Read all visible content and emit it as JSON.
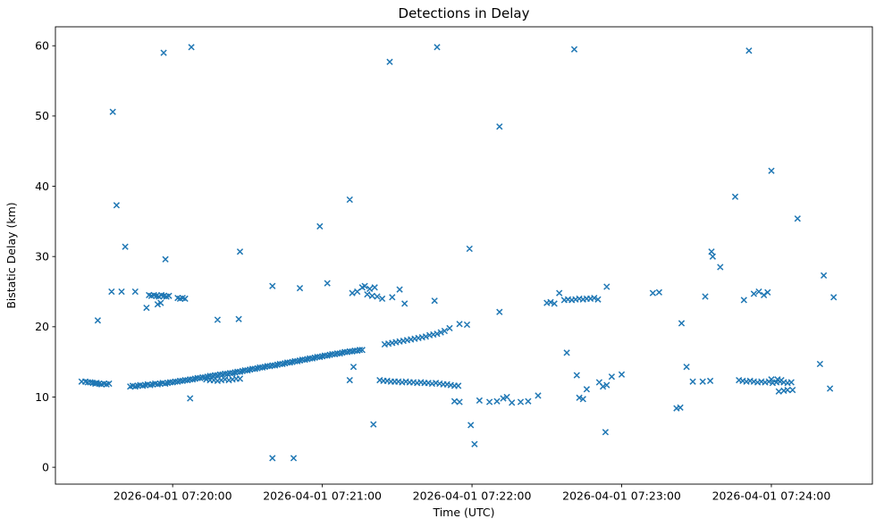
{
  "figure": {
    "background": "#ffffff"
  },
  "chart_data": {
    "type": "scatter",
    "title": "Detections in Delay",
    "xlabel": "Time (UTC)",
    "ylabel": "Bistatic Delay (km)",
    "marker": "x",
    "marker_color": "#1f77b4",
    "grid": false,
    "legend": "none",
    "x_axis": {
      "units": "seconds relative to 2026-04-01 07:20:00 UTC",
      "tick_seconds": [
        0,
        60,
        120,
        180,
        240
      ],
      "tick_labels": [
        "2026-04-01 07:20:00",
        "2026-04-01 07:21:00",
        "2026-04-01 07:22:00",
        "2026-04-01 07:23:00",
        "2026-04-01 07:24:00"
      ],
      "lim_seconds": [
        -47,
        280.5
      ]
    },
    "y_axis": {
      "ticks": [
        0,
        10,
        20,
        30,
        40,
        50,
        60
      ],
      "lim": [
        -2.4,
        62.7
      ]
    },
    "points": [
      [
        -36.5,
        12.2
      ],
      [
        -35,
        12.2
      ],
      [
        -34,
        12.1
      ],
      [
        -33,
        12.1
      ],
      [
        -32,
        12.0
      ],
      [
        -31,
        11.9
      ],
      [
        -30.5,
        12.0
      ],
      [
        -29.5,
        11.9
      ],
      [
        -28.5,
        11.8
      ],
      [
        -27.5,
        11.9
      ],
      [
        -26.5,
        11.8
      ],
      [
        -25.5,
        11.9
      ],
      [
        -30,
        20.9
      ],
      [
        -24.5,
        25.0
      ],
      [
        -24,
        50.6
      ],
      [
        -22.5,
        37.3
      ],
      [
        -20.5,
        25.0
      ],
      [
        -19,
        31.4
      ],
      [
        -15,
        25.0
      ],
      [
        -10.5,
        22.7
      ],
      [
        -9.5,
        24.5
      ],
      [
        -8.5,
        24.4
      ],
      [
        -7.5,
        24.5
      ],
      [
        -6.5,
        24.4
      ],
      [
        -6,
        23.2
      ],
      [
        -5.5,
        24.3
      ],
      [
        -4.8,
        23.4
      ],
      [
        -4.5,
        24.5
      ],
      [
        -3.6,
        59.0
      ],
      [
        -3.5,
        24.4
      ],
      [
        -2.9,
        29.6
      ],
      [
        -2.5,
        24.3
      ],
      [
        -1.5,
        24.4
      ],
      [
        2,
        24.1
      ],
      [
        3,
        24.0
      ],
      [
        4,
        24.1
      ],
      [
        5,
        24.0
      ],
      [
        7,
        9.8
      ],
      [
        7.5,
        59.8
      ],
      [
        -17,
        11.5
      ],
      [
        -16,
        11.6
      ],
      [
        -15,
        11.5
      ],
      [
        -14,
        11.6
      ],
      [
        -13,
        11.7
      ],
      [
        -12,
        11.6
      ],
      [
        -11,
        11.7
      ],
      [
        -10,
        11.8
      ],
      [
        -9,
        11.7
      ],
      [
        -8,
        11.8
      ],
      [
        -7,
        11.9
      ],
      [
        -6,
        11.8
      ],
      [
        -5,
        11.9
      ],
      [
        -4,
        12.0
      ],
      [
        -3,
        11.9
      ],
      [
        -2,
        12.0
      ],
      [
        -1,
        12.1
      ],
      [
        0,
        12.1
      ],
      [
        1,
        12.2
      ],
      [
        2,
        12.2
      ],
      [
        3,
        12.3
      ],
      [
        4,
        12.3
      ],
      [
        5,
        12.4
      ],
      [
        6,
        12.4
      ],
      [
        7,
        12.5
      ],
      [
        8,
        12.5
      ],
      [
        9,
        12.6
      ],
      [
        10,
        12.7
      ],
      [
        11,
        12.7
      ],
      [
        12,
        12.8
      ],
      [
        13,
        12.8
      ],
      [
        14,
        12.9
      ],
      [
        15,
        13.0
      ],
      [
        16,
        13.0
      ],
      [
        17,
        13.1
      ],
      [
        18,
        13.1
      ],
      [
        19,
        13.2
      ],
      [
        20,
        13.2
      ],
      [
        21,
        13.3
      ],
      [
        22,
        13.3
      ],
      [
        23,
        13.4
      ],
      [
        24,
        13.4
      ],
      [
        25,
        13.5
      ],
      [
        26,
        13.6
      ],
      [
        27,
        13.6
      ],
      [
        28,
        13.7
      ],
      [
        29,
        13.8
      ],
      [
        30,
        13.8
      ],
      [
        31,
        13.9
      ],
      [
        32,
        14.0
      ],
      [
        33,
        14.0
      ],
      [
        34,
        14.1
      ],
      [
        35,
        14.2
      ],
      [
        36,
        14.2
      ],
      [
        37,
        14.3
      ],
      [
        38,
        14.4
      ],
      [
        39,
        14.4
      ],
      [
        40,
        14.5
      ],
      [
        41,
        14.5
      ],
      [
        42,
        14.6
      ],
      [
        43,
        14.7
      ],
      [
        44,
        14.7
      ],
      [
        45,
        14.8
      ],
      [
        46,
        14.9
      ],
      [
        47,
        14.9
      ],
      [
        48,
        15.0
      ],
      [
        49,
        15.1
      ],
      [
        50,
        15.1
      ],
      [
        51,
        15.2
      ],
      [
        52,
        15.3
      ],
      [
        53,
        15.3
      ],
      [
        54,
        15.4
      ],
      [
        55,
        15.5
      ],
      [
        56,
        15.5
      ],
      [
        57,
        15.6
      ],
      [
        58,
        15.7
      ],
      [
        59,
        15.7
      ],
      [
        60,
        15.8
      ],
      [
        61,
        15.9
      ],
      [
        62,
        15.9
      ],
      [
        63,
        16.0
      ],
      [
        64,
        16.1
      ],
      [
        65,
        16.1
      ],
      [
        66,
        16.2
      ],
      [
        67,
        16.2
      ],
      [
        68,
        16.3
      ],
      [
        69,
        16.4
      ],
      [
        70,
        16.4
      ],
      [
        71,
        16.5
      ],
      [
        72,
        16.5
      ],
      [
        73,
        16.6
      ],
      [
        74,
        16.6
      ],
      [
        75,
        16.7
      ],
      [
        76,
        16.7
      ],
      [
        13.5,
        12.5
      ],
      [
        15,
        12.4
      ],
      [
        16.5,
        12.4
      ],
      [
        18,
        12.3
      ],
      [
        19.5,
        12.4
      ],
      [
        21,
        12.5
      ],
      [
        22.5,
        12.4
      ],
      [
        24,
        12.5
      ],
      [
        25.5,
        12.6
      ],
      [
        27,
        12.6
      ],
      [
        18,
        21.0
      ],
      [
        26.5,
        21.1
      ],
      [
        27,
        30.7
      ],
      [
        40,
        25.8
      ],
      [
        40,
        1.3
      ],
      [
        48.5,
        1.3
      ],
      [
        51,
        25.5
      ],
      [
        59,
        34.3
      ],
      [
        62,
        26.2
      ],
      [
        71,
        38.1
      ],
      [
        71,
        12.4
      ],
      [
        72.5,
        14.3
      ],
      [
        72,
        24.8
      ],
      [
        74,
        25.0
      ],
      [
        76,
        25.6
      ],
      [
        77,
        25.8
      ],
      [
        78,
        24.6
      ],
      [
        79,
        25.4
      ],
      [
        80,
        24.4
      ],
      [
        81,
        25.6
      ],
      [
        82,
        24.3
      ],
      [
        84,
        24.0
      ],
      [
        88,
        24.2
      ],
      [
        91,
        25.3
      ],
      [
        93,
        23.3
      ],
      [
        80.5,
        6.1
      ],
      [
        87,
        57.7
      ],
      [
        85,
        17.5
      ],
      [
        86.5,
        17.6
      ],
      [
        88,
        17.7
      ],
      [
        89.5,
        17.8
      ],
      [
        91,
        17.9
      ],
      [
        92.5,
        18.0
      ],
      [
        94,
        18.1
      ],
      [
        95.5,
        18.2
      ],
      [
        97,
        18.3
      ],
      [
        98.5,
        18.4
      ],
      [
        100,
        18.5
      ],
      [
        101.5,
        18.6
      ],
      [
        103,
        18.8
      ],
      [
        104.5,
        18.9
      ],
      [
        106,
        19.0
      ],
      [
        107.5,
        19.2
      ],
      [
        109,
        19.4
      ],
      [
        111,
        19.8
      ],
      [
        115,
        20.4
      ],
      [
        118,
        20.3
      ],
      [
        83,
        12.4
      ],
      [
        84.5,
        12.3
      ],
      [
        86,
        12.3
      ],
      [
        87.5,
        12.2
      ],
      [
        89,
        12.2
      ],
      [
        90.5,
        12.2
      ],
      [
        92,
        12.1
      ],
      [
        93.5,
        12.2
      ],
      [
        95,
        12.1
      ],
      [
        96.5,
        12.1
      ],
      [
        98,
        12.0
      ],
      [
        99.5,
        12.1
      ],
      [
        101,
        12.0
      ],
      [
        102.5,
        12.0
      ],
      [
        104,
        11.9
      ],
      [
        105.5,
        12.0
      ],
      [
        107,
        11.9
      ],
      [
        108.5,
        11.8
      ],
      [
        110,
        11.8
      ],
      [
        111.5,
        11.7
      ],
      [
        113,
        11.6
      ],
      [
        114.5,
        11.6
      ],
      [
        105,
        23.7
      ],
      [
        106,
        59.8
      ],
      [
        113,
        9.4
      ],
      [
        115,
        9.3
      ],
      [
        119,
        31.1
      ],
      [
        119.5,
        6.0
      ],
      [
        121,
        3.3
      ],
      [
        123,
        9.5
      ],
      [
        127,
        9.3
      ],
      [
        130,
        9.4
      ],
      [
        131,
        48.5
      ],
      [
        131,
        22.1
      ],
      [
        132.5,
        9.8
      ],
      [
        134,
        10.0
      ],
      [
        136,
        9.2
      ],
      [
        139.5,
        9.3
      ],
      [
        142.5,
        9.4
      ],
      [
        146.5,
        10.2
      ],
      [
        150,
        23.4
      ],
      [
        151.5,
        23.5
      ],
      [
        153,
        23.3
      ],
      [
        155,
        24.8
      ],
      [
        157,
        23.8
      ],
      [
        158.5,
        23.9
      ],
      [
        160,
        23.8
      ],
      [
        161,
        59.5
      ],
      [
        161.5,
        23.9
      ],
      [
        163,
        24.0
      ],
      [
        164.5,
        23.9
      ],
      [
        166,
        24.0
      ],
      [
        167.5,
        24.0
      ],
      [
        169,
        24.1
      ],
      [
        170.5,
        23.9
      ],
      [
        158,
        16.3
      ],
      [
        162,
        13.1
      ],
      [
        163,
        9.9
      ],
      [
        164.5,
        9.7
      ],
      [
        166,
        11.1
      ],
      [
        171,
        12.1
      ],
      [
        172.5,
        11.5
      ],
      [
        173.5,
        5.0
      ],
      [
        174,
        11.7
      ],
      [
        174,
        25.7
      ],
      [
        176,
        12.9
      ],
      [
        180,
        13.2
      ],
      [
        192.5,
        24.8
      ],
      [
        195,
        24.9
      ],
      [
        202,
        8.4
      ],
      [
        203.5,
        8.5
      ],
      [
        204,
        20.5
      ],
      [
        206,
        14.3
      ],
      [
        208.5,
        12.2
      ],
      [
        212.5,
        12.2
      ],
      [
        213.5,
        24.3
      ],
      [
        215.5,
        12.3
      ],
      [
        216,
        30.7
      ],
      [
        216.5,
        30.0
      ],
      [
        219.5,
        28.5
      ],
      [
        225.5,
        38.5
      ],
      [
        227,
        12.4
      ],
      [
        228.5,
        12.3
      ],
      [
        229,
        23.8
      ],
      [
        230,
        12.2
      ],
      [
        231,
        59.3
      ],
      [
        231.5,
        12.3
      ],
      [
        233,
        12.2
      ],
      [
        233,
        24.7
      ],
      [
        234.5,
        12.1
      ],
      [
        235,
        25.0
      ],
      [
        236,
        12.2
      ],
      [
        237,
        24.5
      ],
      [
        237.5,
        12.1
      ],
      [
        238.5,
        24.9
      ],
      [
        239,
        12.2
      ],
      [
        240,
        42.2
      ],
      [
        240,
        12.5
      ],
      [
        240.5,
        12.0
      ],
      [
        242,
        12.1
      ],
      [
        242.5,
        12.5
      ],
      [
        243,
        10.8
      ],
      [
        243.5,
        12.2
      ],
      [
        244,
        12.4
      ],
      [
        245,
        12.1
      ],
      [
        245,
        10.9
      ],
      [
        246.5,
        12.0
      ],
      [
        246.5,
        11.0
      ],
      [
        248,
        12.1
      ],
      [
        248.5,
        11.0
      ],
      [
        250.5,
        35.4
      ],
      [
        259.5,
        14.7
      ],
      [
        261,
        27.3
      ],
      [
        263.5,
        11.2
      ],
      [
        265,
        24.2
      ]
    ]
  }
}
